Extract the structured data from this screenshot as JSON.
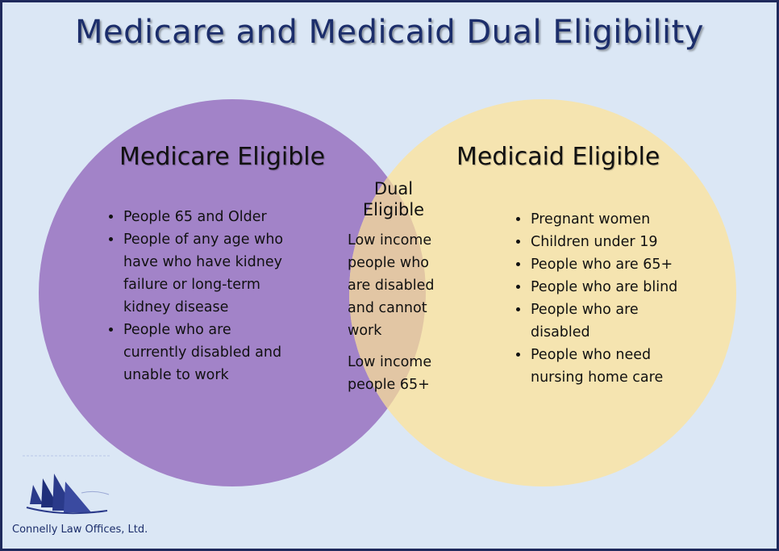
{
  "title": "Medicare and Medicaid Dual Eligibility",
  "medicare": {
    "heading": "Medicare Eligible",
    "items": [
      "People 65 and Older",
      "People of any age who have who have kidney failure or long-term kidney disease",
      "People who are currently disabled and unable to work"
    ],
    "color": "#a283c8"
  },
  "medicaid": {
    "heading": "Medicaid Eligible",
    "items": [
      "Pregnant women",
      "Children under 19",
      "People who are 65+",
      "People who are blind",
      "People who are disabled",
      "People who need nursing home care"
    ],
    "color": "#f5e4b0"
  },
  "dual": {
    "heading_line1": "Dual",
    "heading_line2": "Eligible",
    "text1": "Low income people who are disabled and cannot work",
    "text2": "Low income people 65+",
    "color": "#e2c6a4"
  },
  "logo": {
    "icon": "sailboats-logo-icon",
    "text": "Connelly Law Offices, Ltd."
  }
}
